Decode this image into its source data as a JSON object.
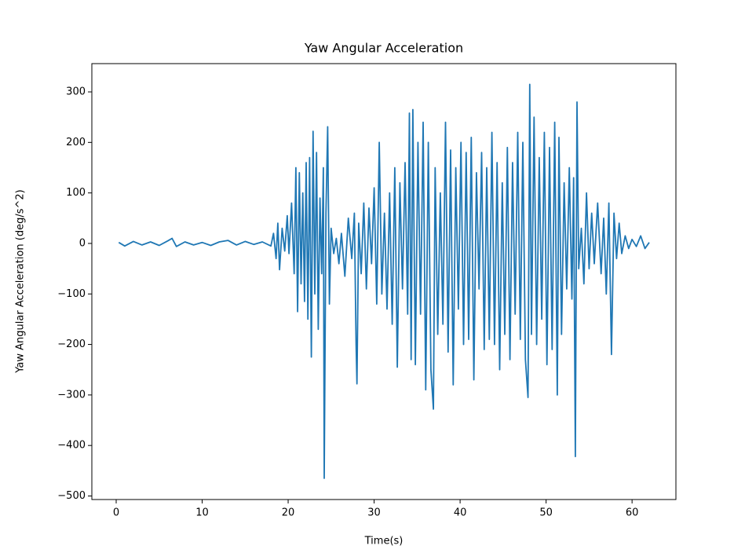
{
  "chart_data": {
    "type": "line",
    "title": "Yaw Angular Acceleration",
    "x_label": "Time(s)",
    "y_label": "Yaw Angular Acceleration (deg/s^2)",
    "xlim": [
      -2.83,
      65.1
    ],
    "ylim": [
      -507,
      356
    ],
    "xticks": [
      0,
      10,
      20,
      30,
      40,
      50,
      60
    ],
    "yticks": [
      {
        "value": -500,
        "label": "−500"
      },
      {
        "value": -400,
        "label": "−400"
      },
      {
        "value": -300,
        "label": "−300"
      },
      {
        "value": -200,
        "label": "−200"
      },
      {
        "value": -100,
        "label": "−100"
      },
      0,
      100,
      200,
      300
    ],
    "series": [
      {
        "color": "#1f77b4",
        "x": [
          0.3,
          1,
          2,
          3,
          4,
          5,
          6,
          6.5,
          7,
          8,
          9,
          10,
          11,
          12,
          13,
          14,
          15,
          16,
          17,
          18,
          18.3,
          18.6,
          18.8,
          19,
          19.3,
          19.6,
          19.9,
          20.1,
          20.4,
          20.7,
          20.9,
          21.1,
          21.3,
          21.5,
          21.7,
          21.9,
          22.1,
          22.3,
          22.5,
          22.7,
          22.9,
          23.1,
          23.3,
          23.5,
          23.7,
          23.9,
          24.1,
          24.2,
          24.4,
          24.6,
          24.8,
          25,
          25.3,
          25.6,
          25.9,
          26.2,
          26.6,
          27,
          27.4,
          27.7,
          27.9,
          28,
          28.2,
          28.5,
          28.8,
          29.1,
          29.4,
          29.7,
          30,
          30.3,
          30.6,
          30.9,
          31.2,
          31.5,
          31.8,
          32.1,
          32.4,
          32.7,
          33,
          33.3,
          33.6,
          33.9,
          34.1,
          34.3,
          34.5,
          34.8,
          35.1,
          35.4,
          35.7,
          36,
          36.3,
          36.6,
          36.9,
          37.1,
          37.4,
          37.7,
          38,
          38.3,
          38.6,
          38.9,
          39.2,
          39.5,
          39.8,
          40.1,
          40.4,
          40.7,
          41,
          41.3,
          41.6,
          41.9,
          42.2,
          42.5,
          42.8,
          43.1,
          43.4,
          43.7,
          44,
          44.3,
          44.6,
          44.9,
          45.2,
          45.5,
          45.8,
          46.1,
          46.4,
          46.7,
          47,
          47.3,
          47.6,
          47.9,
          48.1,
          48.3,
          48.6,
          48.9,
          49.2,
          49.5,
          49.8,
          50.1,
          50.4,
          50.7,
          51,
          51.3,
          51.5,
          51.8,
          52.1,
          52.4,
          52.7,
          53,
          53.2,
          53.4,
          53.6,
          53.8,
          54.1,
          54.4,
          54.7,
          55,
          55.3,
          55.6,
          56,
          56.4,
          56.7,
          57,
          57.3,
          57.6,
          57.9,
          58.2,
          58.5,
          58.8,
          59.2,
          59.6,
          60,
          60.5,
          61,
          61.5,
          62
        ],
        "values": [
          2,
          -5,
          4,
          -3,
          3,
          -4,
          5,
          10,
          -6,
          3,
          -3,
          2,
          -4,
          3,
          6,
          -3,
          4,
          -2,
          3,
          -5,
          20,
          -30,
          40,
          -52,
          30,
          -15,
          55,
          -20,
          80,
          -60,
          150,
          -135,
          140,
          -80,
          100,
          -115,
          160,
          -150,
          170,
          -225,
          222,
          -100,
          180,
          -170,
          90,
          -60,
          150,
          -465,
          60,
          231,
          -120,
          30,
          -20,
          10,
          -40,
          20,
          -65,
          50,
          -30,
          60,
          -200,
          -278,
          40,
          -60,
          80,
          -90,
          70,
          -40,
          110,
          -120,
          200,
          -100,
          60,
          -130,
          100,
          -160,
          150,
          -245,
          120,
          -90,
          160,
          -140,
          258,
          -230,
          265,
          -240,
          200,
          -140,
          240,
          -290,
          200,
          -250,
          -328,
          150,
          -180,
          100,
          -160,
          240,
          -215,
          185,
          -280,
          150,
          -130,
          200,
          -200,
          180,
          -190,
          210,
          -270,
          140,
          -90,
          180,
          -210,
          150,
          -190,
          220,
          -200,
          160,
          -250,
          120,
          -180,
          190,
          -230,
          160,
          -140,
          220,
          -190,
          200,
          -230,
          -305,
          315,
          -180,
          250,
          -200,
          170,
          -150,
          220,
          -240,
          190,
          -210,
          240,
          -300,
          210,
          -180,
          120,
          -90,
          150,
          -110,
          130,
          -422,
          280,
          -50,
          30,
          -80,
          100,
          -50,
          60,
          -40,
          80,
          -60,
          50,
          -100,
          80,
          -220,
          60,
          -30,
          40,
          -20,
          15,
          -10,
          8,
          -6,
          15,
          -10,
          2
        ]
      }
    ]
  }
}
